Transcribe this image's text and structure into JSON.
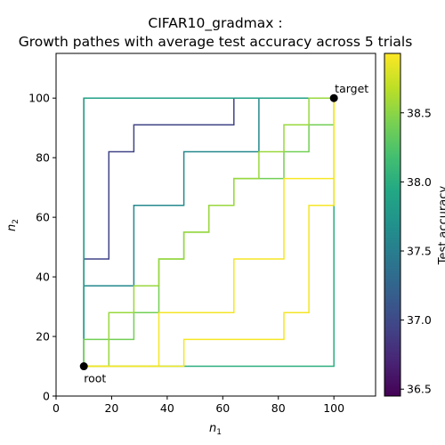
{
  "chart_data": {
    "type": "line",
    "title_line1": "CIFAR10_gradmax :",
    "title_line2": "Growth pathes with average test accuracy across 5 trials",
    "xlabel": "n",
    "xlabel_sub": "1",
    "ylabel": "n",
    "ylabel_sub": "2",
    "xlim": [
      0,
      115
    ],
    "ylim": [
      0,
      115
    ],
    "xticks": [
      0,
      20,
      40,
      60,
      80,
      100
    ],
    "yticks": [
      0,
      20,
      40,
      60,
      80,
      100
    ],
    "grid": false,
    "colormap": "viridis",
    "colorbar": {
      "label": "Test accuracy",
      "range": [
        36.45,
        38.93
      ],
      "ticks": [
        36.5,
        37.0,
        37.5,
        38.0,
        38.5
      ]
    },
    "points": [
      {
        "label": "root",
        "x": 10,
        "y": 10
      },
      {
        "label": "target",
        "x": 100,
        "y": 100
      }
    ],
    "series": [
      {
        "accuracy": 36.45,
        "points": [
          [
            10,
            10
          ],
          [
            10,
            100
          ],
          [
            100,
            100
          ]
        ]
      },
      {
        "accuracy": 36.95,
        "points": [
          [
            10,
            10
          ],
          [
            10,
            46
          ],
          [
            19,
            46
          ],
          [
            19,
            82
          ],
          [
            28,
            82
          ],
          [
            28,
            91
          ],
          [
            64,
            91
          ],
          [
            64,
            100
          ],
          [
            100,
            100
          ]
        ]
      },
      {
        "accuracy": 37.6,
        "points": [
          [
            10,
            10
          ],
          [
            10,
            37
          ],
          [
            28,
            37
          ],
          [
            28,
            64
          ],
          [
            46,
            64
          ],
          [
            46,
            82
          ],
          [
            73,
            82
          ],
          [
            73,
            100
          ],
          [
            100,
            100
          ]
        ]
      },
      {
        "accuracy": 37.85,
        "points": [
          [
            10,
            10
          ],
          [
            10,
            100
          ],
          [
            100,
            100
          ]
        ]
      },
      {
        "accuracy": 38.0,
        "points": [
          [
            10,
            10
          ],
          [
            100,
            10
          ],
          [
            100,
            100
          ]
        ]
      },
      {
        "accuracy": 38.4,
        "points": [
          [
            10,
            10
          ],
          [
            10,
            19
          ],
          [
            28,
            19
          ],
          [
            28,
            28
          ],
          [
            37,
            28
          ],
          [
            37,
            46
          ],
          [
            46,
            46
          ],
          [
            46,
            55
          ],
          [
            55,
            55
          ],
          [
            55,
            64
          ],
          [
            64,
            64
          ],
          [
            64,
            73
          ],
          [
            82,
            73
          ],
          [
            82,
            82
          ],
          [
            91,
            82
          ],
          [
            91,
            91
          ],
          [
            100,
            91
          ],
          [
            100,
            100
          ]
        ]
      },
      {
        "accuracy": 38.55,
        "points": [
          [
            10,
            10
          ],
          [
            19,
            10
          ],
          [
            19,
            28
          ],
          [
            28,
            28
          ],
          [
            28,
            37
          ],
          [
            37,
            37
          ],
          [
            37,
            46
          ],
          [
            46,
            46
          ],
          [
            46,
            55
          ],
          [
            55,
            55
          ],
          [
            55,
            64
          ],
          [
            64,
            64
          ],
          [
            64,
            73
          ],
          [
            73,
            73
          ],
          [
            73,
            82
          ],
          [
            82,
            82
          ],
          [
            82,
            91
          ],
          [
            91,
            91
          ],
          [
            91,
            100
          ],
          [
            100,
            100
          ]
        ]
      },
      {
        "accuracy": 38.9,
        "points": [
          [
            10,
            10
          ],
          [
            37,
            10
          ],
          [
            37,
            28
          ],
          [
            64,
            28
          ],
          [
            64,
            46
          ],
          [
            82,
            46
          ],
          [
            82,
            73
          ],
          [
            100,
            73
          ],
          [
            100,
            100
          ]
        ]
      },
      {
        "accuracy": 38.9,
        "points": [
          [
            10,
            10
          ],
          [
            46,
            10
          ],
          [
            46,
            19
          ],
          [
            82,
            19
          ],
          [
            82,
            28
          ],
          [
            91,
            28
          ],
          [
            91,
            64
          ],
          [
            100,
            64
          ],
          [
            100,
            100
          ]
        ]
      }
    ]
  }
}
